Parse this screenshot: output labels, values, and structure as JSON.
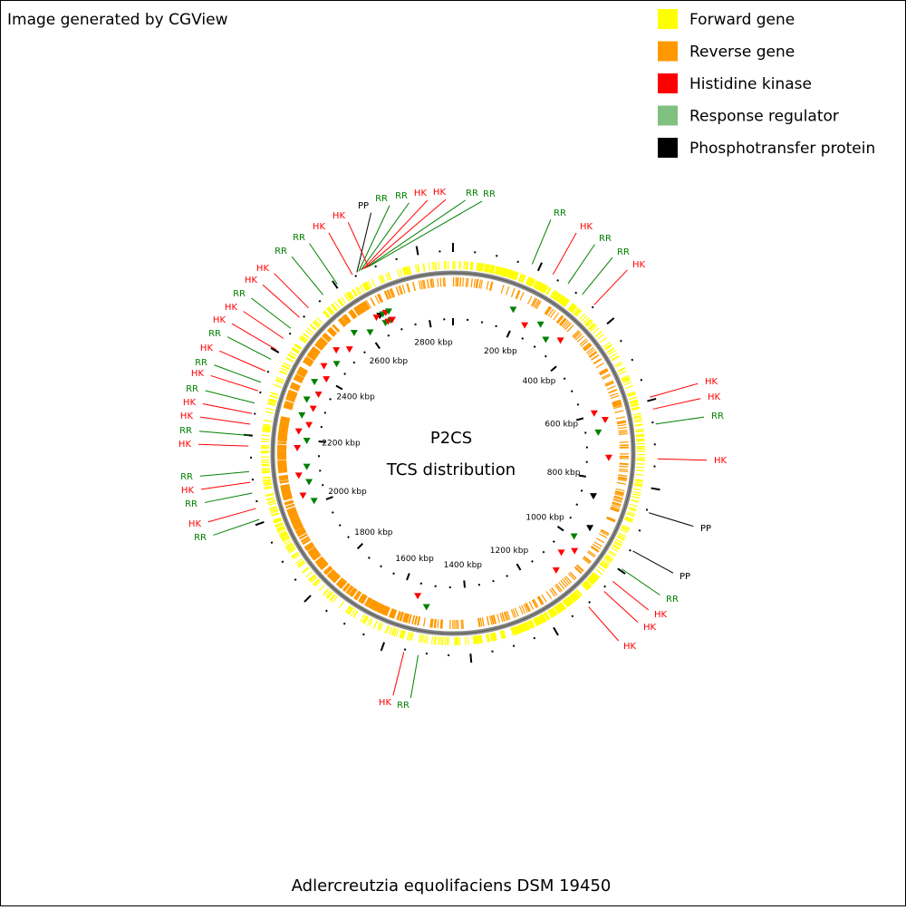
{
  "header": {
    "credit": "Image generated by CGView"
  },
  "legend": {
    "items": [
      {
        "label": "Forward gene",
        "color": "#ffff00"
      },
      {
        "label": "Reverse gene",
        "color": "#ff9900"
      },
      {
        "label": "Histidine kinase",
        "color": "#ff0000"
      },
      {
        "label": "Response regulator",
        "color": "#80c080"
      },
      {
        "label": "Phosphotransfer protein",
        "color": "#000000"
      }
    ]
  },
  "center": {
    "title": "P2CS",
    "subtitle": "TCS distribution"
  },
  "ruler_labels": [
    "200 kbp",
    "400 kbp",
    "600 kbp",
    "800 kbp",
    "1000 kbp",
    "1200 kbp",
    "1400 kbp",
    "1600 kbp",
    "1800 kbp",
    "2000 kbp",
    "2200 kbp",
    "2400 kbp",
    "2600 kbp",
    "2800 kbp"
  ],
  "feature_labels": [
    "PP",
    "RR",
    "RR",
    "HK",
    "HK",
    "RR",
    "RR",
    "HK",
    "HK",
    "RR",
    "RR",
    "HK",
    "HK",
    "RR",
    "HK",
    "HK",
    "RR",
    "HK",
    "RR",
    "HK",
    "RR",
    "HK",
    "HK",
    "RR",
    "HK",
    "RR",
    "HK",
    "RR",
    "HK",
    "RR",
    "RR",
    "HK",
    "RR",
    "RR",
    "HK",
    "HK",
    "HK",
    "RR",
    "HK",
    "PP",
    "PP",
    "RR",
    "HK",
    "HK",
    "HK",
    "HK",
    "RR"
  ],
  "footer": {
    "organism": "Adlercreutzia equolifaciens DSM 19450"
  }
}
